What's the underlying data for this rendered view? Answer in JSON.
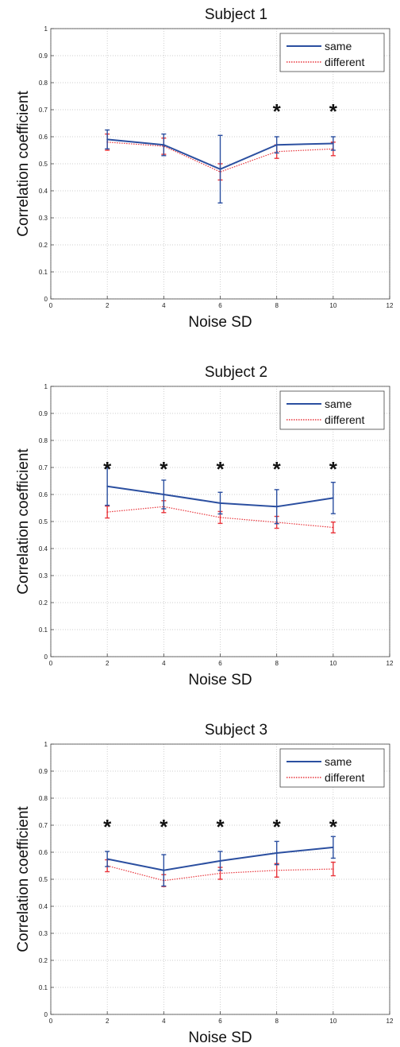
{
  "chart_data": [
    {
      "type": "line",
      "title": "Subject 1",
      "xlabel": "Noise SD",
      "ylabel": "Correlation coefficient",
      "xlim": [
        0,
        12
      ],
      "ylim": [
        0,
        1
      ],
      "xticks": [
        "0",
        "2",
        "4",
        "6",
        "8",
        "10",
        "12"
      ],
      "yticks": [
        "0",
        "0.1",
        "0.2",
        "0.3",
        "0.4",
        "0.5",
        "0.6",
        "0.7",
        "0.8",
        "0.9",
        "1"
      ],
      "grid": true,
      "legend_position": "top-right",
      "x": [
        2,
        4,
        6,
        8,
        10
      ],
      "series": [
        {
          "name": "same",
          "color": "#2b4fa0",
          "line_style": "solid",
          "values": [
            0.59,
            0.57,
            0.48,
            0.57,
            0.575
          ],
          "error": [
            0.035,
            0.04,
            0.125,
            0.03,
            0.025
          ]
        },
        {
          "name": "different",
          "color": "#e8343b",
          "line_style": "dotted",
          "values": [
            0.58,
            0.565,
            0.47,
            0.545,
            0.555
          ],
          "error": [
            0.03,
            0.03,
            0.03,
            0.025,
            0.025
          ]
        }
      ],
      "significance_marker": "*",
      "significant_x": [
        8,
        10
      ]
    },
    {
      "type": "line",
      "title": "Subject 2",
      "xlabel": "Noise SD",
      "ylabel": "Correlation coefficient",
      "xlim": [
        0,
        12
      ],
      "ylim": [
        0,
        1
      ],
      "xticks": [
        "0",
        "2",
        "4",
        "6",
        "8",
        "10",
        "12"
      ],
      "yticks": [
        "0",
        "0.1",
        "0.2",
        "0.3",
        "0.4",
        "0.5",
        "0.6",
        "0.7",
        "0.8",
        "0.9",
        "1"
      ],
      "grid": true,
      "legend_position": "top-right",
      "x": [
        2,
        4,
        6,
        8,
        10
      ],
      "series": [
        {
          "name": "same",
          "color": "#2b4fa0",
          "line_style": "solid",
          "values": [
            0.63,
            0.6,
            0.568,
            0.555,
            0.587
          ],
          "error": [
            0.07,
            0.053,
            0.04,
            0.063,
            0.058
          ]
        },
        {
          "name": "different",
          "color": "#e8343b",
          "line_style": "dotted",
          "values": [
            0.535,
            0.555,
            0.515,
            0.497,
            0.478
          ],
          "error": [
            0.022,
            0.022,
            0.022,
            0.022,
            0.02
          ]
        }
      ],
      "significance_marker": "*",
      "significant_x": [
        2,
        4,
        6,
        8,
        10
      ]
    },
    {
      "type": "line",
      "title": "Subject 3",
      "xlabel": "Noise SD",
      "ylabel": "Correlation coefficient",
      "xlim": [
        0,
        12
      ],
      "ylim": [
        0,
        1
      ],
      "xticks": [
        "0",
        "2",
        "4",
        "6",
        "8",
        "10",
        "12"
      ],
      "yticks": [
        "0",
        "0.1",
        "0.2",
        "0.3",
        "0.4",
        "0.5",
        "0.6",
        "0.7",
        "0.8",
        "0.9",
        "1"
      ],
      "grid": true,
      "legend_position": "top-right",
      "x": [
        2,
        4,
        6,
        8,
        10
      ],
      "series": [
        {
          "name": "same",
          "color": "#2b4fa0",
          "line_style": "solid",
          "values": [
            0.575,
            0.533,
            0.568,
            0.597,
            0.618
          ],
          "error": [
            0.028,
            0.058,
            0.035,
            0.043,
            0.04
          ]
        },
        {
          "name": "different",
          "color": "#e8343b",
          "line_style": "dotted",
          "values": [
            0.55,
            0.495,
            0.522,
            0.533,
            0.538
          ],
          "error": [
            0.022,
            0.022,
            0.022,
            0.025,
            0.025
          ]
        }
      ],
      "significance_marker": "*",
      "significant_x": [
        2,
        4,
        6,
        8,
        10
      ]
    }
  ]
}
